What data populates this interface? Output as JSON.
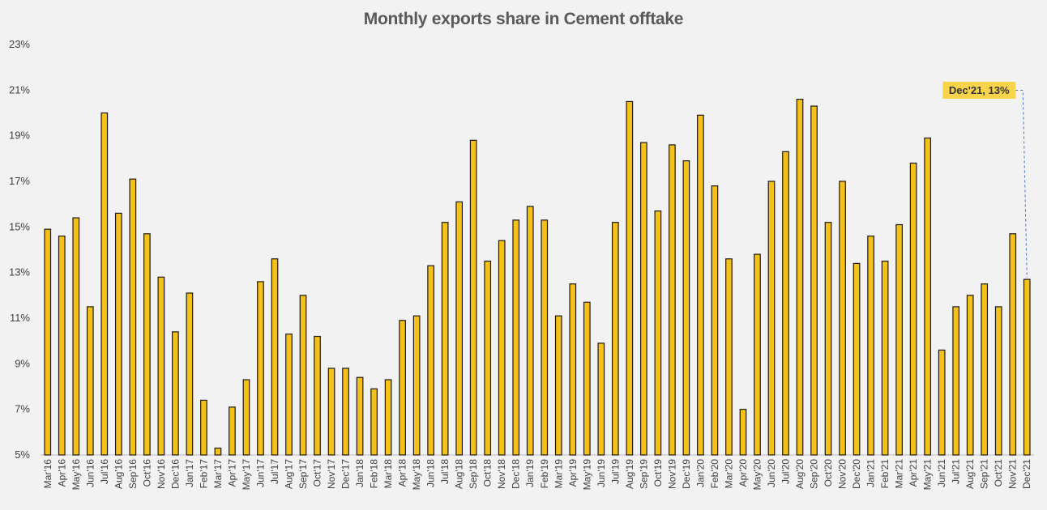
{
  "chart_data": {
    "type": "bar",
    "title": "Monthly exports share in Cement offtake",
    "xlabel": "",
    "ylabel": "",
    "ylim": [
      5,
      23
    ],
    "yticks": [
      "5%",
      "7%",
      "9%",
      "11%",
      "13%",
      "15%",
      "17%",
      "19%",
      "21%",
      "23%"
    ],
    "grid": false,
    "legend": "none",
    "bar_color": "#f5c118",
    "categories": [
      "Mar'16",
      "Apr'16",
      "May'16",
      "Jun'16",
      "Jul'16",
      "Aug'16",
      "Sep'16",
      "Oct'16",
      "Nov'16",
      "Dec'16",
      "Jan'17",
      "Feb'17",
      "Mar'17",
      "Apr'17",
      "May'17",
      "Jun'17",
      "Jul'17",
      "Aug'17",
      "Sep'17",
      "Oct'17",
      "Nov'17",
      "Dec'17",
      "Jan'18",
      "Feb'18",
      "Mar'18",
      "Apr'18",
      "May'18",
      "Jun'18",
      "Jul'18",
      "Aug'18",
      "Sep'18",
      "Oct'18",
      "Nov'18",
      "Dec'18",
      "Jan'19",
      "Feb'19",
      "Mar'19",
      "Apr'19",
      "May'19",
      "Jun'19",
      "Jul'19",
      "Aug'19",
      "Sep'19",
      "Oct'19",
      "Nov'19",
      "Dec'19",
      "Jan'20",
      "Feb'20",
      "Mar'20",
      "Apr'20",
      "May'20",
      "Jun'20",
      "Jul'20",
      "Aug'20",
      "Sep'20",
      "Oct'20",
      "Nov'20",
      "Dec'20",
      "Jan'21",
      "Feb'21",
      "Mar'21",
      "Apr'21",
      "May'21",
      "Jun'21",
      "Jul'21",
      "Aug'21",
      "Sep'21",
      "Oct'21",
      "Nov'21",
      "Dec'21"
    ],
    "values": [
      14.9,
      14.6,
      15.4,
      11.5,
      20.0,
      15.6,
      17.1,
      14.7,
      12.8,
      10.4,
      12.1,
      7.4,
      5.3,
      7.1,
      8.3,
      12.6,
      13.6,
      10.3,
      12.0,
      10.2,
      8.8,
      8.8,
      8.4,
      7.9,
      8.3,
      10.9,
      11.1,
      13.3,
      15.2,
      16.1,
      18.8,
      13.5,
      14.4,
      15.3,
      15.9,
      15.3,
      11.1,
      12.5,
      11.7,
      9.9,
      15.2,
      20.5,
      18.7,
      15.7,
      18.6,
      17.9,
      19.9,
      16.8,
      13.6,
      7.0,
      13.8,
      17.0,
      18.3,
      20.6,
      20.3,
      15.2,
      17.0,
      13.4,
      14.6,
      13.5,
      15.1,
      17.8,
      18.9,
      9.6,
      11.5,
      12.0,
      12.5,
      11.5,
      14.7,
      12.7
    ],
    "annotation": {
      "category": "Dec'21",
      "text": "Dec'21, 13%",
      "color": "#f8d44c"
    }
  }
}
